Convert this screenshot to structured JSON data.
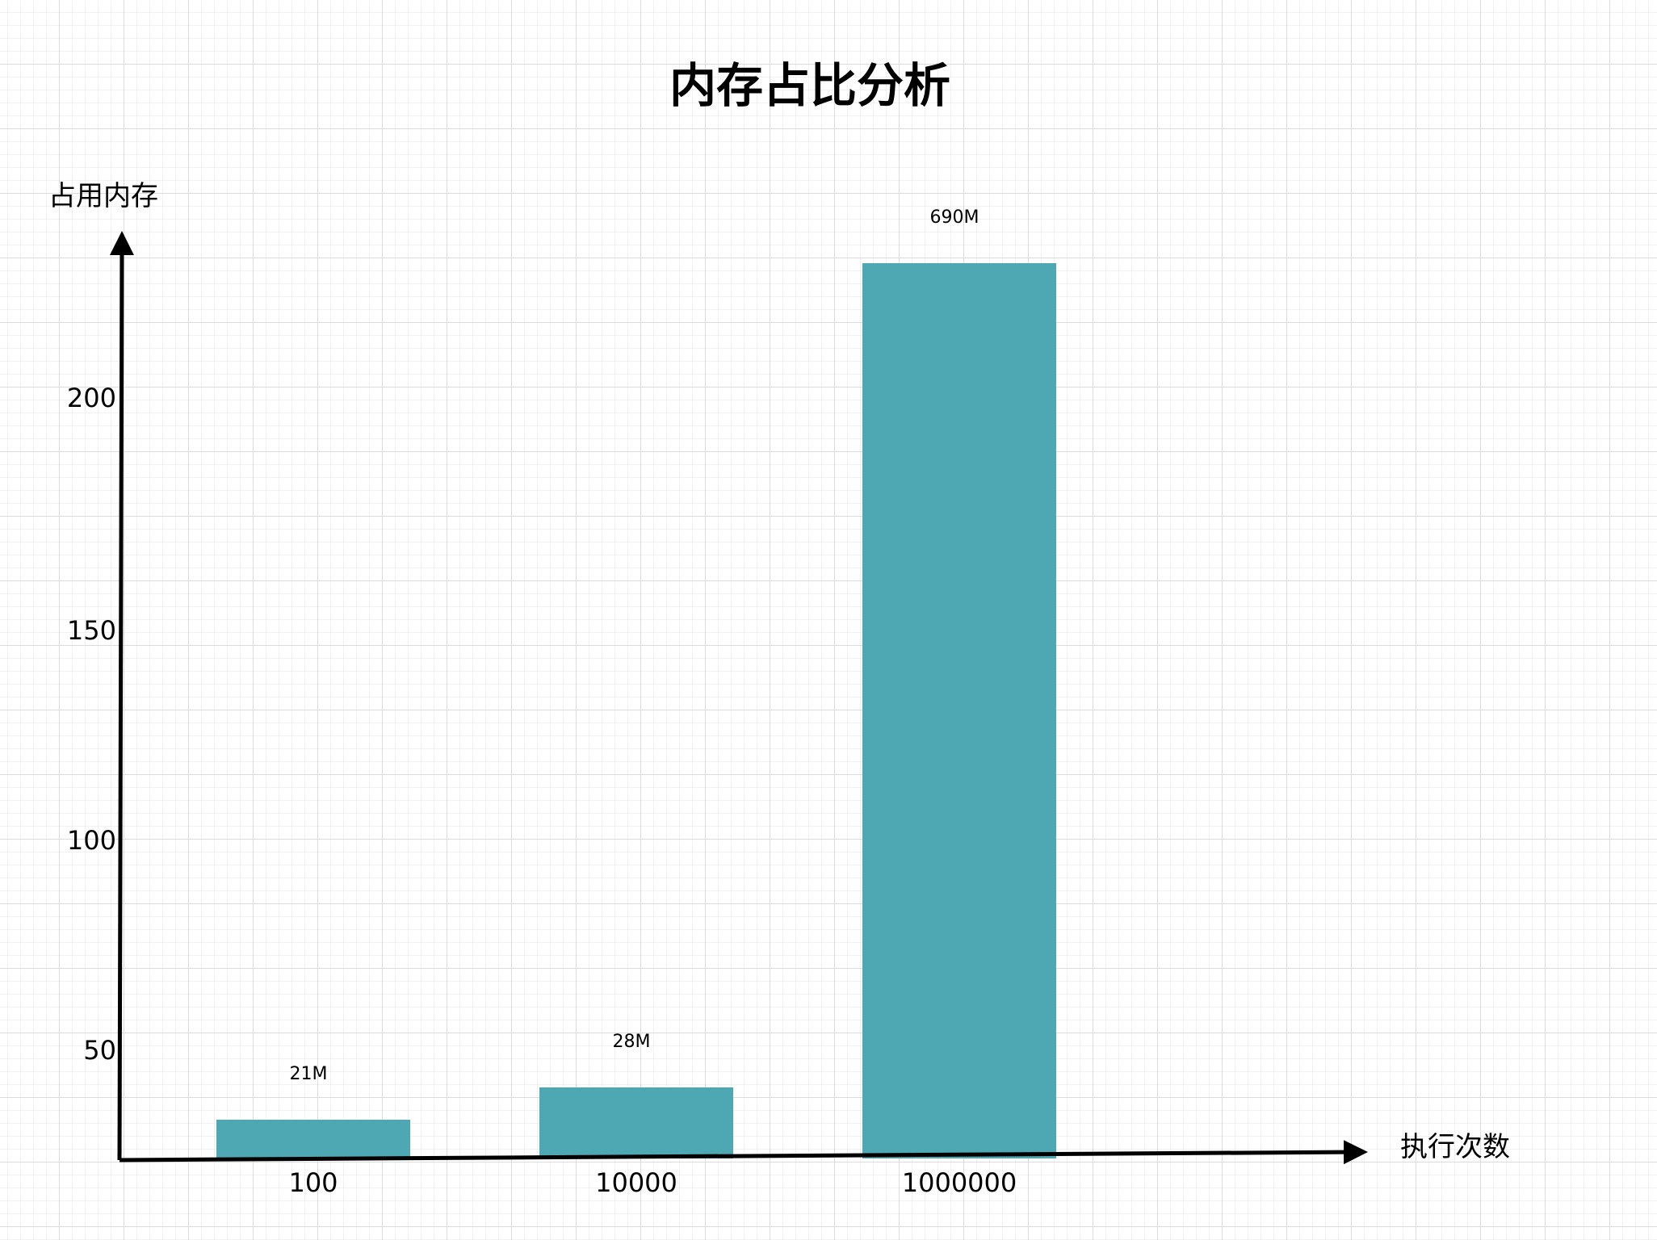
{
  "chart_data": {
    "type": "bar",
    "title": "内存占比分析",
    "ylabel": "占用内存",
    "xlabel": "执行次数",
    "categories": [
      "100",
      "10000",
      "1000000"
    ],
    "values": [
      21,
      28,
      690
    ],
    "data_labels": [
      "21M",
      "28M",
      "690M"
    ],
    "yticks": [
      50,
      100,
      150,
      200
    ],
    "bar_color": "#4ea8b3",
    "grid": true,
    "legend": "none"
  }
}
